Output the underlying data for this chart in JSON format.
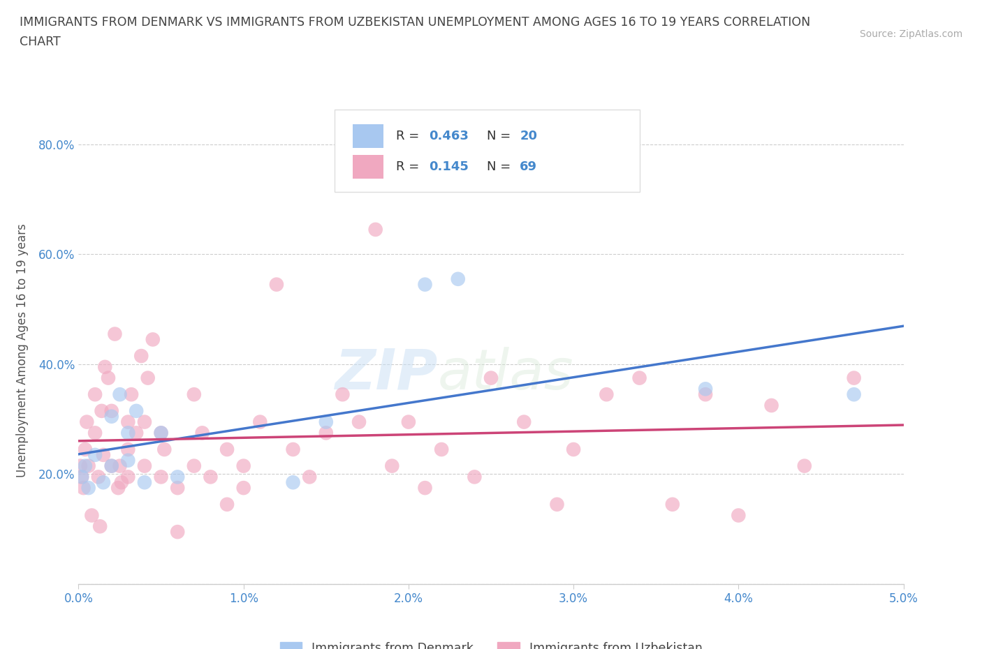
{
  "title_line1": "IMMIGRANTS FROM DENMARK VS IMMIGRANTS FROM UZBEKISTAN UNEMPLOYMENT AMONG AGES 16 TO 19 YEARS CORRELATION",
  "title_line2": "CHART",
  "source": "Source: ZipAtlas.com",
  "ylabel": "Unemployment Among Ages 16 to 19 years",
  "xlim": [
    0.0,
    0.05
  ],
  "ylim": [
    0.0,
    0.85
  ],
  "xticks": [
    0.0,
    0.01,
    0.02,
    0.03,
    0.04,
    0.05
  ],
  "xtick_labels": [
    "0.0%",
    "1.0%",
    "2.0%",
    "3.0%",
    "4.0%",
    "5.0%"
  ],
  "yticks": [
    0.0,
    0.2,
    0.4,
    0.6,
    0.8
  ],
  "ytick_labels": [
    "",
    "20.0%",
    "40.0%",
    "60.0%",
    "80.0%"
  ],
  "denmark_color": "#a8c8f0",
  "uzbekistan_color": "#f0a8c0",
  "denmark_line_color": "#4477cc",
  "uzbekistan_line_color": "#cc4477",
  "R_denmark": 0.463,
  "N_denmark": 20,
  "R_uzbekistan": 0.145,
  "N_uzbekistan": 69,
  "watermark": "ZIPatlas",
  "denmark_x": [
    0.0002,
    0.0004,
    0.0006,
    0.001,
    0.0015,
    0.002,
    0.002,
    0.0025,
    0.003,
    0.003,
    0.0035,
    0.004,
    0.005,
    0.006,
    0.013,
    0.015,
    0.021,
    0.023,
    0.038,
    0.047
  ],
  "denmark_y": [
    0.195,
    0.215,
    0.175,
    0.235,
    0.185,
    0.215,
    0.305,
    0.345,
    0.275,
    0.225,
    0.315,
    0.185,
    0.275,
    0.195,
    0.185,
    0.295,
    0.545,
    0.555,
    0.355,
    0.345
  ],
  "uzbekistan_x": [
    0.0001,
    0.0002,
    0.0003,
    0.0004,
    0.0005,
    0.0006,
    0.0008,
    0.001,
    0.001,
    0.0012,
    0.0013,
    0.0014,
    0.0015,
    0.0016,
    0.0018,
    0.002,
    0.002,
    0.0022,
    0.0024,
    0.0025,
    0.0026,
    0.003,
    0.003,
    0.003,
    0.0032,
    0.0035,
    0.0038,
    0.004,
    0.004,
    0.0042,
    0.0045,
    0.005,
    0.005,
    0.0052,
    0.006,
    0.006,
    0.007,
    0.007,
    0.0075,
    0.008,
    0.009,
    0.009,
    0.01,
    0.01,
    0.011,
    0.012,
    0.013,
    0.014,
    0.015,
    0.016,
    0.017,
    0.018,
    0.019,
    0.02,
    0.021,
    0.022,
    0.024,
    0.025,
    0.027,
    0.029,
    0.03,
    0.032,
    0.034,
    0.036,
    0.038,
    0.04,
    0.042,
    0.044,
    0.047
  ],
  "uzbekistan_y": [
    0.215,
    0.195,
    0.175,
    0.245,
    0.295,
    0.215,
    0.125,
    0.345,
    0.275,
    0.195,
    0.105,
    0.315,
    0.235,
    0.395,
    0.375,
    0.315,
    0.215,
    0.455,
    0.175,
    0.215,
    0.185,
    0.245,
    0.295,
    0.195,
    0.345,
    0.275,
    0.415,
    0.295,
    0.215,
    0.375,
    0.445,
    0.275,
    0.195,
    0.245,
    0.175,
    0.095,
    0.345,
    0.215,
    0.275,
    0.195,
    0.145,
    0.245,
    0.175,
    0.215,
    0.295,
    0.545,
    0.245,
    0.195,
    0.275,
    0.345,
    0.295,
    0.645,
    0.215,
    0.295,
    0.175,
    0.245,
    0.195,
    0.375,
    0.295,
    0.145,
    0.245,
    0.345,
    0.375,
    0.145,
    0.345,
    0.125,
    0.325,
    0.215,
    0.375
  ]
}
